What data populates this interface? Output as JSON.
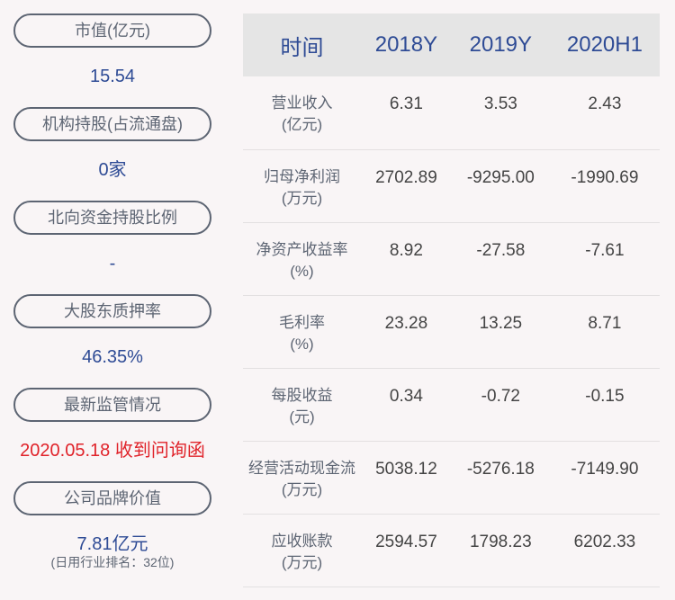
{
  "left": [
    {
      "label": "市值(亿元)",
      "value": "15.54"
    },
    {
      "label": "机构持股(占流通盘)",
      "value": "0家"
    },
    {
      "label": "北向资金持股比例",
      "value": "-"
    },
    {
      "label": "大股东质押率",
      "value": "46.35%"
    },
    {
      "label": "最新监管情况",
      "value": "2020.05.18 收到问询函",
      "alert": true
    },
    {
      "label": "公司品牌价值",
      "value": "7.81亿元",
      "sub": "(日用行业排名：32位)"
    }
  ],
  "table": {
    "headers": [
      "时间",
      "2018Y",
      "2019Y",
      "2020H1"
    ],
    "rows": [
      {
        "name": "营业收入",
        "unit": "(亿元)",
        "values": [
          "6.31",
          "3.53",
          "2.43"
        ]
      },
      {
        "name": "归母净利润",
        "unit": "(万元)",
        "values": [
          "2702.89",
          "-9295.00",
          "-1990.69"
        ]
      },
      {
        "name": "净资产收益率",
        "unit": "(%)",
        "values": [
          "8.92",
          "-27.58",
          "-7.61"
        ]
      },
      {
        "name": "毛利率",
        "unit": "(%)",
        "values": [
          "23.28",
          "13.25",
          "8.71"
        ]
      },
      {
        "name": "每股收益",
        "unit": "(元)",
        "values": [
          "0.34",
          "-0.72",
          "-0.15"
        ]
      },
      {
        "name": "经营活动现金流",
        "unit": "(万元)",
        "values": [
          "5038.12",
          "-5276.18",
          "-7149.90"
        ]
      },
      {
        "name": "应收账款",
        "unit": "(万元)",
        "values": [
          "2594.57",
          "1798.23",
          "6202.33"
        ]
      }
    ]
  },
  "colors": {
    "accent": "#2e4b95",
    "alert": "#e0232a",
    "header_bg": "#e5e5e5"
  }
}
